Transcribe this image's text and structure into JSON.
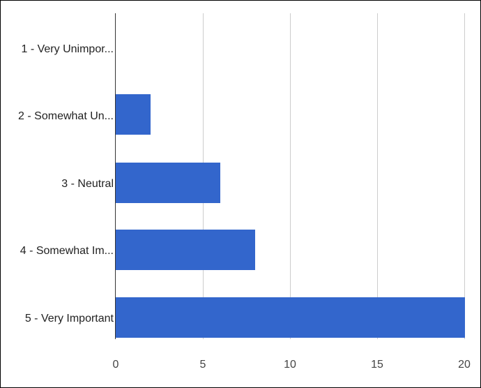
{
  "chart_data": {
    "type": "bar",
    "orientation": "horizontal",
    "title": "",
    "xlabel": "",
    "ylabel": "",
    "categories": [
      "1 - Very Unimpor...",
      "2 - Somewhat Un...",
      "3 - Neutral",
      "4 - Somewhat Im...",
      "5 - Very Important"
    ],
    "values": [
      0,
      2,
      6,
      8,
      20
    ],
    "xlim": [
      0,
      20
    ],
    "xticks": [
      "0",
      "5",
      "10",
      "15",
      "20"
    ],
    "grid": true,
    "legend": null,
    "bar_color": "#3366cc"
  }
}
